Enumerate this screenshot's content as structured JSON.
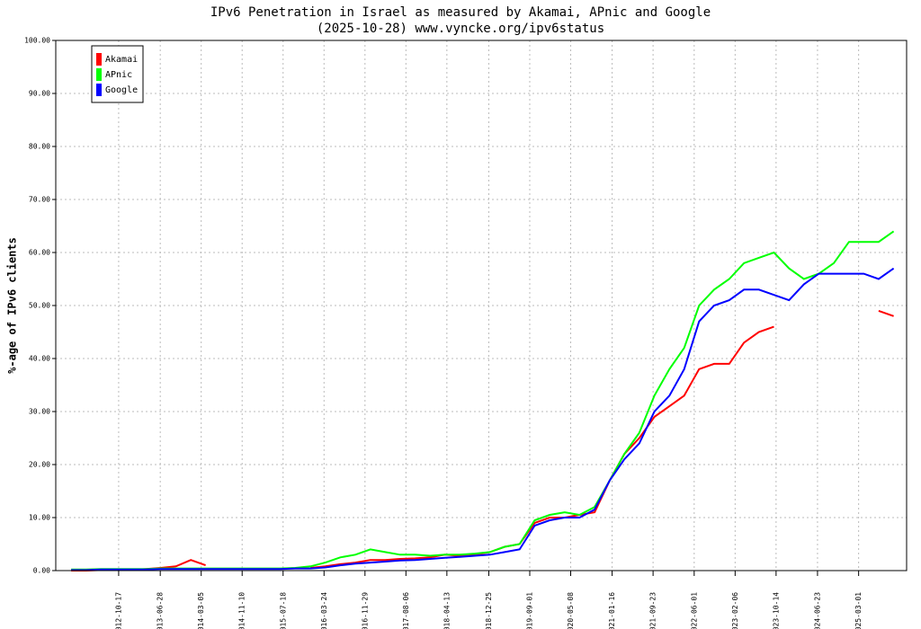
{
  "chart_data": {
    "type": "line",
    "title": "IPv6 Penetration in Israel as measured by Akamai, APnic and Google",
    "subtitle": "(2025-10-28) www.vyncke.org/ipv6status",
    "y_label": "%-age of IPv6 clients",
    "x": [
      "2012-01-01",
      "2012-04-01",
      "2012-07-01",
      "2012-10-01",
      "2013-01-01",
      "2013-04-01",
      "2013-07-01",
      "2013-10-01",
      "2014-01-01",
      "2014-04-01",
      "2014-07-01",
      "2014-10-01",
      "2015-01-01",
      "2015-04-01",
      "2015-07-01",
      "2015-10-01",
      "2016-01-01",
      "2016-04-01",
      "2016-07-01",
      "2016-10-01",
      "2017-01-01",
      "2017-04-01",
      "2017-07-01",
      "2017-10-01",
      "2018-01-01",
      "2018-04-01",
      "2018-07-01",
      "2018-10-01",
      "2019-01-01",
      "2019-04-01",
      "2019-07-01",
      "2019-10-01",
      "2020-01-01",
      "2020-04-01",
      "2020-07-01",
      "2020-10-01",
      "2021-01-01",
      "2021-04-01",
      "2021-07-01",
      "2021-10-01",
      "2022-01-01",
      "2022-04-01",
      "2022-07-01",
      "2022-10-01",
      "2023-01-01",
      "2023-04-01",
      "2023-07-01",
      "2023-10-01",
      "2024-01-01",
      "2024-04-01",
      "2024-07-01",
      "2024-10-01",
      "2025-01-01",
      "2025-04-01",
      "2025-07-01",
      "2025-10-01"
    ],
    "series": [
      {
        "name": "Akamai",
        "color": "#ff0000",
        "values": [
          0,
          0,
          0.1,
          0.1,
          0.1,
          0.3,
          0.5,
          0.8,
          2,
          1,
          null,
          null,
          null,
          null,
          null,
          null,
          0.5,
          0.8,
          1.2,
          1.5,
          2,
          2,
          2.2,
          2.3,
          2.5,
          3,
          2.8,
          3,
          3.5,
          4.5,
          5,
          9,
          10,
          10,
          10.5,
          11,
          17,
          22,
          25,
          29,
          31,
          33,
          38,
          39,
          39,
          43,
          45,
          46,
          null,
          null,
          null,
          null,
          null,
          null,
          49,
          48
        ]
      },
      {
        "name": "APnic",
        "color": "#00ff00",
        "values": [
          0.2,
          0.2,
          0.3,
          0.3,
          0.3,
          0.3,
          0.4,
          0.4,
          0.4,
          0.4,
          0.4,
          0.4,
          0.4,
          0.4,
          0.4,
          0.5,
          0.8,
          1.5,
          2.5,
          3,
          4,
          3.5,
          3,
          3,
          2.8,
          3,
          3,
          3.2,
          3.5,
          4.5,
          5,
          9.5,
          10.5,
          11,
          10.5,
          12,
          17,
          22,
          26,
          33,
          38,
          42,
          50,
          53,
          55,
          58,
          59,
          60,
          57,
          55,
          56,
          58,
          62,
          62,
          62,
          64
        ]
      },
      {
        "name": "Google",
        "color": "#0000ff",
        "values": [
          0.1,
          0.1,
          0.2,
          0.2,
          0.2,
          0.2,
          0.3,
          0.3,
          0.3,
          0.3,
          0.3,
          0.3,
          0.3,
          0.3,
          0.3,
          0.4,
          0.4,
          0.6,
          1,
          1.3,
          1.5,
          1.7,
          1.9,
          2,
          2.2,
          2.4,
          2.6,
          2.8,
          3,
          3.5,
          4,
          8.5,
          9.5,
          10,
          10,
          11.5,
          17,
          21,
          24,
          30,
          33,
          38,
          47,
          50,
          51,
          53,
          53,
          52,
          51,
          54,
          56,
          56,
          56,
          56,
          55,
          57
        ]
      }
    ],
    "xlim": [
      "2011-09-29",
      "2025-12-19"
    ],
    "xticks": [
      "2012-10-17",
      "2013-06-28",
      "2014-03-05",
      "2014-11-10",
      "2015-07-18",
      "2016-03-24",
      "2016-11-29",
      "2017-08-06",
      "2018-04-13",
      "2018-12-25",
      "2019-09-01",
      "2020-05-08",
      "2021-01-16",
      "2021-09-23",
      "2022-06-01",
      "2023-02-06",
      "2023-10-14",
      "2024-06-23",
      "2025-03-01"
    ],
    "ylim": [
      0,
      100
    ],
    "yticks": [
      {
        "value": 0,
        "label": "0.00"
      },
      {
        "value": 10,
        "label": "10.00"
      },
      {
        "value": 20,
        "label": "20.00"
      },
      {
        "value": 30,
        "label": "30.00"
      },
      {
        "value": 40,
        "label": "40.00"
      },
      {
        "value": 50,
        "label": "50.00"
      },
      {
        "value": 60,
        "label": "60.00"
      },
      {
        "value": 70,
        "label": "70.00"
      },
      {
        "value": 80,
        "label": "80.00"
      },
      {
        "value": 90,
        "label": "90.00"
      },
      {
        "value": 100,
        "label": "100.00"
      }
    ],
    "grid": true,
    "legend": "upper left"
  }
}
